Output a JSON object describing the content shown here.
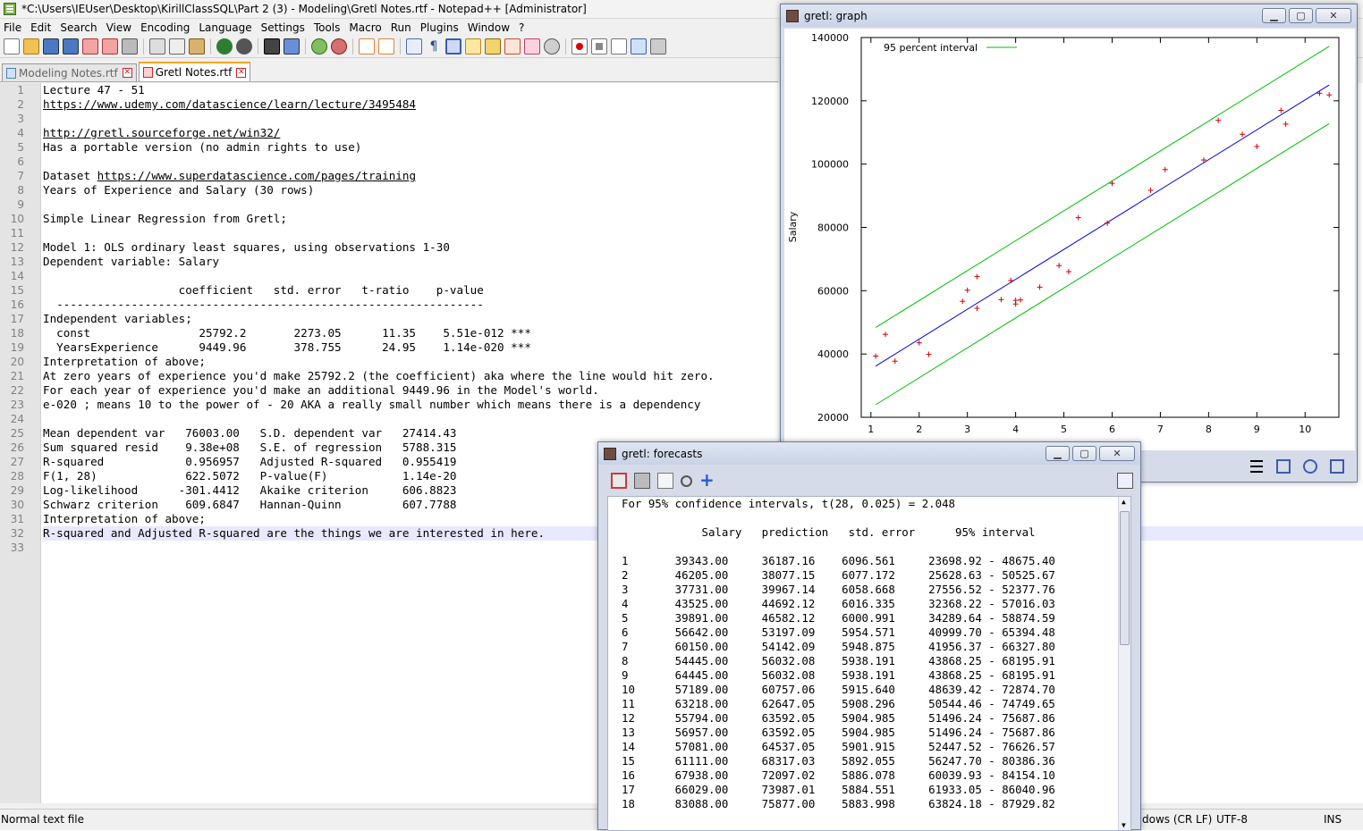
{
  "npp": {
    "title": "*C:\\Users\\IEUser\\Desktop\\KirillClassSQL\\Part 2 (3) - Modeling\\Gretl Notes.rtf - Notepad++ [Administrator]",
    "menu": [
      "File",
      "Edit",
      "Search",
      "View",
      "Encoding",
      "Language",
      "Settings",
      "Tools",
      "Macro",
      "Run",
      "Plugins",
      "Window",
      "?"
    ],
    "tabs": [
      {
        "label": "Modeling Notes.rtf",
        "active": false
      },
      {
        "label": "Gretl Notes.rtf",
        "active": true
      }
    ],
    "lines": [
      "Lecture 47 - 51",
      "https://www.udemy.com/datascience/learn/lecture/3495484",
      "",
      "http://gretl.sourceforge.net/win32/",
      "Has a portable version (no admin rights to use)",
      "",
      "Dataset https://www.superdatascience.com/pages/training",
      "Years of Experience and Salary (30 rows)",
      "",
      "Simple Linear Regression from Gretl;",
      "",
      "Model 1: OLS ordinary least squares, using observations 1-30",
      "Dependent variable: Salary",
      "",
      "                    coefficient   std. error   t-ratio    p-value",
      "  ---------------------------------------------------------------",
      "Independent variables;",
      "  const                25792.2       2273.05      11.35    5.51e-012 ***",
      "  YearsExperience      9449.96       378.755      24.95    1.14e-020 ***",
      "Interpretation of above;",
      "At zero years of experience you'd make 25792.2 (the coefficient) aka where the line would hit zero.",
      "For each year of experience you'd make an additional 9449.96 in the Model's world.",
      "e-020 ; means 10 to the power of - 20 AKA a really small number which means there is a dependency",
      "",
      "Mean dependent var   76003.00   S.D. dependent var   27414.43",
      "Sum squared resid    9.38e+08   S.E. of regression   5788.315",
      "R-squared            0.956957   Adjusted R-squared   0.955419",
      "F(1, 28)             622.5072   P-value(F)           1.14e-20",
      "Log-likelihood      -301.4412   Akaike criterion     606.8823",
      "Schwarz criterion    609.6847   Hannan-Quinn         607.7788",
      "Interpretation of above;",
      "R-squared and Adjusted R-squared are the things we are interested in here.",
      ""
    ],
    "current_line": 32,
    "status": {
      "type": "Normal text file",
      "eol": "dows (CR LF)",
      "encoding": "UTF-8",
      "mode": "INS"
    }
  },
  "graph": {
    "title": "gretl: graph",
    "chart_data": {
      "type": "scatter",
      "ylabel": "Salary",
      "xlabel": "",
      "xlim": [
        0.8,
        10.7
      ],
      "ylim": [
        20000,
        140000
      ],
      "xticks": [
        1,
        2,
        3,
        4,
        5,
        6,
        7,
        8,
        9,
        10
      ],
      "yticks": [
        20000,
        40000,
        60000,
        80000,
        100000,
        120000,
        140000
      ],
      "legend": "95 percent interval",
      "legend_position": "top-left",
      "colors": {
        "points": "#d40000",
        "fit": "#0000e0",
        "interval": "#00c000"
      },
      "fit": {
        "intercept": 25792.2,
        "slope": 9449.96
      },
      "interval_halfwidth": 12200,
      "points": [
        [
          1.1,
          39343
        ],
        [
          1.3,
          46205
        ],
        [
          1.5,
          37731
        ],
        [
          2.0,
          43525
        ],
        [
          2.2,
          39891
        ],
        [
          2.9,
          56642
        ],
        [
          3.0,
          60150
        ],
        [
          3.2,
          54445
        ],
        [
          3.2,
          64445
        ],
        [
          3.7,
          57189
        ],
        [
          3.9,
          63218
        ],
        [
          4.0,
          55794
        ],
        [
          4.0,
          56957
        ],
        [
          4.1,
          57081
        ],
        [
          4.5,
          61111
        ],
        [
          4.9,
          67938
        ],
        [
          5.1,
          66029
        ],
        [
          5.3,
          83088
        ],
        [
          5.9,
          81363
        ],
        [
          6.0,
          93940
        ],
        [
          6.8,
          91738
        ],
        [
          7.1,
          98273
        ],
        [
          7.9,
          101302
        ],
        [
          8.2,
          113812
        ],
        [
          8.7,
          109431
        ],
        [
          9.0,
          105582
        ],
        [
          9.5,
          116969
        ],
        [
          9.6,
          112635
        ],
        [
          10.3,
          122391
        ],
        [
          10.5,
          121872
        ]
      ]
    }
  },
  "forecasts": {
    "title": "gretl: forecasts",
    "header_line": "For 95% confidence intervals, t(28, 0.025) = 2.048",
    "columns": [
      "Salary",
      "prediction",
      "std. error",
      "95% interval"
    ],
    "rows": [
      [
        "1",
        "39343.00",
        "36187.16",
        "6096.561",
        "23698.92 - 48675.40"
      ],
      [
        "2",
        "46205.00",
        "38077.15",
        "6077.172",
        "25628.63 - 50525.67"
      ],
      [
        "3",
        "37731.00",
        "39967.14",
        "6058.668",
        "27556.52 - 52377.76"
      ],
      [
        "4",
        "43525.00",
        "44692.12",
        "6016.335",
        "32368.22 - 57016.03"
      ],
      [
        "5",
        "39891.00",
        "46582.12",
        "6000.991",
        "34289.64 - 58874.59"
      ],
      [
        "6",
        "56642.00",
        "53197.09",
        "5954.571",
        "40999.70 - 65394.48"
      ],
      [
        "7",
        "60150.00",
        "54142.09",
        "5948.875",
        "41956.37 - 66327.80"
      ],
      [
        "8",
        "54445.00",
        "56032.08",
        "5938.191",
        "43868.25 - 68195.91"
      ],
      [
        "9",
        "64445.00",
        "56032.08",
        "5938.191",
        "43868.25 - 68195.91"
      ],
      [
        "10",
        "57189.00",
        "60757.06",
        "5915.640",
        "48639.42 - 72874.70"
      ],
      [
        "11",
        "63218.00",
        "62647.05",
        "5908.296",
        "50544.46 - 74749.65"
      ],
      [
        "12",
        "55794.00",
        "63592.05",
        "5904.985",
        "51496.24 - 75687.86"
      ],
      [
        "13",
        "56957.00",
        "63592.05",
        "5904.985",
        "51496.24 - 75687.86"
      ],
      [
        "14",
        "57081.00",
        "64537.05",
        "5901.915",
        "52447.52 - 76626.57"
      ],
      [
        "15",
        "61111.00",
        "68317.03",
        "5892.055",
        "56247.70 - 80386.36"
      ],
      [
        "16",
        "67938.00",
        "72097.02",
        "5886.078",
        "60039.93 - 84154.10"
      ],
      [
        "17",
        "66029.00",
        "73987.01",
        "5884.551",
        "61933.05 - 86040.96"
      ],
      [
        "18",
        "83088.00",
        "75877.00",
        "5883.998",
        "63824.18 - 87929.82"
      ]
    ]
  }
}
